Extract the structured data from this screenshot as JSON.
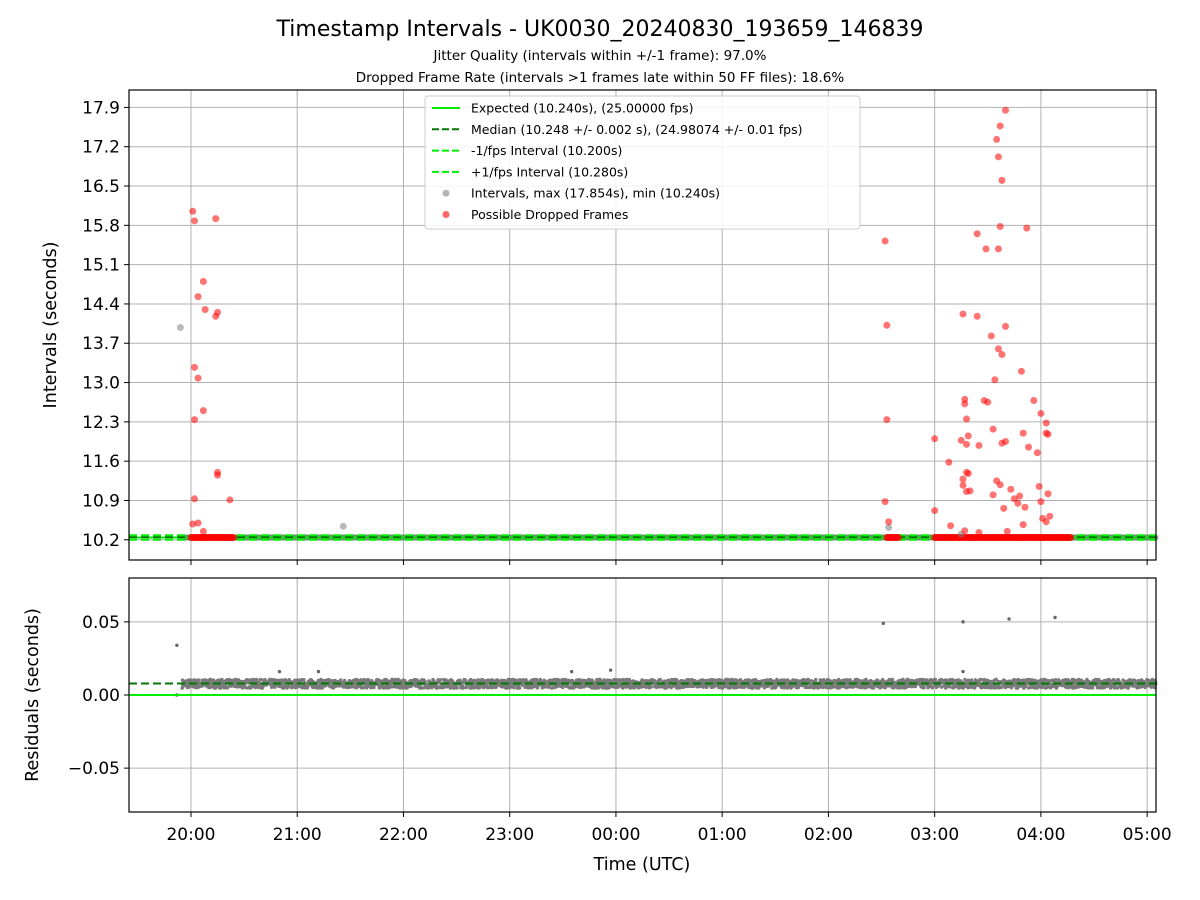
{
  "chart_data": [
    {
      "type": "scatter",
      "title": "Timestamp Intervals - UK0030_20240830_193659_146839",
      "subtitles": [
        "Jitter Quality (intervals within +/-1 frame): 97.0%",
        "Dropped Frame Rate (intervals >1 frames late within 50 FF files): 18.6%"
      ],
      "xlabel": "",
      "ylabel": "Intervals (seconds)",
      "xlim": [
        "19:25",
        "29:05"
      ],
      "ylim": [
        9.84,
        18.21
      ],
      "yticks": [
        10.2,
        10.9,
        11.6,
        12.3,
        13.0,
        13.7,
        14.4,
        15.1,
        15.8,
        16.5,
        17.2,
        17.9
      ],
      "ytick_labels": [
        "10.2",
        "10.9",
        "11.6",
        "12.3",
        "13.0",
        "13.7",
        "14.4",
        "15.1",
        "15.8",
        "16.5",
        "17.2",
        "17.9"
      ],
      "grid": true,
      "legend_position": "top-center",
      "lines": [
        {
          "name": "Expected (10.240s), (25.00000 fps)",
          "y": 10.24,
          "style": "solid",
          "color": "#00ee00"
        },
        {
          "name": "Median (10.248 +/- 0.002 s), (24.98074 +/- 0.01 fps)",
          "y": 10.248,
          "style": "dashed",
          "color": "#007700"
        },
        {
          "name": "-1/fps Interval (10.200s)",
          "y": 10.2,
          "style": "dashed",
          "color": "#00ee00"
        },
        {
          "name": "+1/fps Interval (10.280s)",
          "y": 10.28,
          "style": "dashed",
          "color": "#00ee00"
        }
      ],
      "series": [
        {
          "name": "Intervals, max (17.854s), min (10.240s)",
          "color": "#808080",
          "points": [
            {
              "x": "19:54",
              "y": 13.98
            },
            {
              "x": "21:26",
              "y": 10.44
            },
            {
              "x": "02:34",
              "y": 10.42
            },
            {
              "x": "03:15",
              "y": 10.3
            }
          ]
        },
        {
          "name": "Possible Dropped Frames",
          "color": "#ff0000",
          "points": [
            {
              "x": "20:01",
              "y": 16.05
            },
            {
              "x": "20:02",
              "y": 15.88
            },
            {
              "x": "20:14",
              "y": 15.92
            },
            {
              "x": "20:07",
              "y": 14.8
            },
            {
              "x": "20:04",
              "y": 14.53
            },
            {
              "x": "20:08",
              "y": 14.3
            },
            {
              "x": "20:15",
              "y": 14.25
            },
            {
              "x": "20:14",
              "y": 14.18
            },
            {
              "x": "20:02",
              "y": 13.27
            },
            {
              "x": "20:04",
              "y": 13.08
            },
            {
              "x": "20:07",
              "y": 12.5
            },
            {
              "x": "20:02",
              "y": 12.34
            },
            {
              "x": "20:15",
              "y": 11.4
            },
            {
              "x": "20:15",
              "y": 11.35
            },
            {
              "x": "20:22",
              "y": 10.91
            },
            {
              "x": "20:02",
              "y": 10.93
            },
            {
              "x": "20:04",
              "y": 10.5
            },
            {
              "x": "20:01",
              "y": 10.48
            },
            {
              "x": "20:07",
              "y": 10.35
            },
            {
              "x": "02:32",
              "y": 15.52
            },
            {
              "x": "02:33",
              "y": 14.02
            },
            {
              "x": "02:33",
              "y": 12.34
            },
            {
              "x": "02:32",
              "y": 10.88
            },
            {
              "x": "02:34",
              "y": 10.52
            },
            {
              "x": "03:00",
              "y": 12.0
            },
            {
              "x": "03:00",
              "y": 10.72
            },
            {
              "x": "03:08",
              "y": 11.58
            },
            {
              "x": "03:09",
              "y": 10.45
            },
            {
              "x": "03:15",
              "y": 11.97
            },
            {
              "x": "03:16",
              "y": 14.22
            },
            {
              "x": "03:16",
              "y": 11.17
            },
            {
              "x": "03:16",
              "y": 11.28
            },
            {
              "x": "03:17",
              "y": 12.7
            },
            {
              "x": "03:17",
              "y": 12.62
            },
            {
              "x": "03:18",
              "y": 11.4
            },
            {
              "x": "03:18",
              "y": 11.06
            },
            {
              "x": "03:18",
              "y": 11.9
            },
            {
              "x": "03:18",
              "y": 12.35
            },
            {
              "x": "03:19",
              "y": 12.05
            },
            {
              "x": "03:19",
              "y": 11.38
            },
            {
              "x": "03:20",
              "y": 11.07
            },
            {
              "x": "03:17",
              "y": 10.36
            },
            {
              "x": "03:24",
              "y": 15.65
            },
            {
              "x": "03:24",
              "y": 14.18
            },
            {
              "x": "03:25",
              "y": 11.88
            },
            {
              "x": "03:25",
              "y": 10.33
            },
            {
              "x": "03:28",
              "y": 12.68
            },
            {
              "x": "03:30",
              "y": 12.65
            },
            {
              "x": "03:29",
              "y": 15.38
            },
            {
              "x": "03:32",
              "y": 13.83
            },
            {
              "x": "03:33",
              "y": 12.17
            },
            {
              "x": "03:33",
              "y": 11.0
            },
            {
              "x": "03:34",
              "y": 13.05
            },
            {
              "x": "03:35",
              "y": 11.25
            },
            {
              "x": "03:35",
              "y": 17.33
            },
            {
              "x": "03:36",
              "y": 17.02
            },
            {
              "x": "03:36",
              "y": 13.6
            },
            {
              "x": "03:36",
              "y": 15.38
            },
            {
              "x": "03:37",
              "y": 15.78
            },
            {
              "x": "03:37",
              "y": 11.18
            },
            {
              "x": "03:37",
              "y": 17.57
            },
            {
              "x": "03:38",
              "y": 16.6
            },
            {
              "x": "03:38",
              "y": 13.5
            },
            {
              "x": "03:38",
              "y": 11.92
            },
            {
              "x": "03:40",
              "y": 17.85
            },
            {
              "x": "03:39",
              "y": 10.76
            },
            {
              "x": "03:40",
              "y": 14.0
            },
            {
              "x": "03:40",
              "y": 11.95
            },
            {
              "x": "03:41",
              "y": 10.35
            },
            {
              "x": "03:43",
              "y": 11.1
            },
            {
              "x": "03:45",
              "y": 10.93
            },
            {
              "x": "03:47",
              "y": 10.85
            },
            {
              "x": "03:48",
              "y": 10.98
            },
            {
              "x": "03:49",
              "y": 13.2
            },
            {
              "x": "03:50",
              "y": 12.1
            },
            {
              "x": "03:50",
              "y": 10.47
            },
            {
              "x": "03:51",
              "y": 10.78
            },
            {
              "x": "03:52",
              "y": 15.75
            },
            {
              "x": "03:53",
              "y": 11.85
            },
            {
              "x": "03:56",
              "y": 12.68
            },
            {
              "x": "03:58",
              "y": 11.75
            },
            {
              "x": "03:59",
              "y": 11.15
            },
            {
              "x": "04:00",
              "y": 12.45
            },
            {
              "x": "04:00",
              "y": 10.88
            },
            {
              "x": "04:01",
              "y": 10.58
            },
            {
              "x": "04:03",
              "y": 12.28
            },
            {
              "x": "04:03",
              "y": 12.1
            },
            {
              "x": "04:04",
              "y": 12.08
            },
            {
              "x": "04:04",
              "y": 11.02
            },
            {
              "x": "04:05",
              "y": 10.62
            },
            {
              "x": "04:03",
              "y": 10.52
            }
          ],
          "baseline_runs": [
            {
              "x_start": "20:00",
              "x_end": "20:24",
              "y": 10.24
            },
            {
              "x_start": "02:33",
              "x_end": "02:40",
              "y": 10.24
            },
            {
              "x_start": "03:00",
              "x_end": "04:17",
              "y": 10.24
            }
          ]
        }
      ]
    },
    {
      "type": "scatter",
      "xlabel": "Time (UTC)",
      "ylabel": "Residuals (seconds)",
      "xlim": [
        "19:25",
        "29:05"
      ],
      "ylim": [
        -0.08,
        0.08
      ],
      "yticks": [
        -0.05,
        0.0,
        0.05
      ],
      "ytick_labels": [
        "−0.05",
        "0.00",
        "0.05"
      ],
      "xticks": [
        "20:00",
        "21:00",
        "22:00",
        "23:00",
        "00:00",
        "01:00",
        "02:00",
        "03:00",
        "04:00",
        "05:00"
      ],
      "grid": true,
      "lines": [
        {
          "y": 0.0,
          "style": "solid",
          "color": "#00ee00"
        },
        {
          "y": 0.0079,
          "style": "dashed",
          "color": "#007700"
        }
      ],
      "series": [
        {
          "color": "#808080",
          "band": {
            "x_start": "19:55",
            "x_end": "29:05",
            "center": 0.0077,
            "spread": 0.003
          },
          "outliers": [
            {
              "x": "19:52",
              "y": 0.034
            },
            {
              "x": "19:52",
              "y": 0.0
            },
            {
              "x": "02:31",
              "y": 0.049
            },
            {
              "x": "03:16",
              "y": 0.05
            },
            {
              "x": "03:42",
              "y": 0.052
            },
            {
              "x": "04:08",
              "y": 0.053
            },
            {
              "x": "20:50",
              "y": 0.016
            },
            {
              "x": "21:12",
              "y": 0.016
            },
            {
              "x": "23:35",
              "y": 0.016
            },
            {
              "x": "23:57",
              "y": 0.017
            },
            {
              "x": "03:16",
              "y": 0.016
            }
          ]
        }
      ]
    }
  ]
}
